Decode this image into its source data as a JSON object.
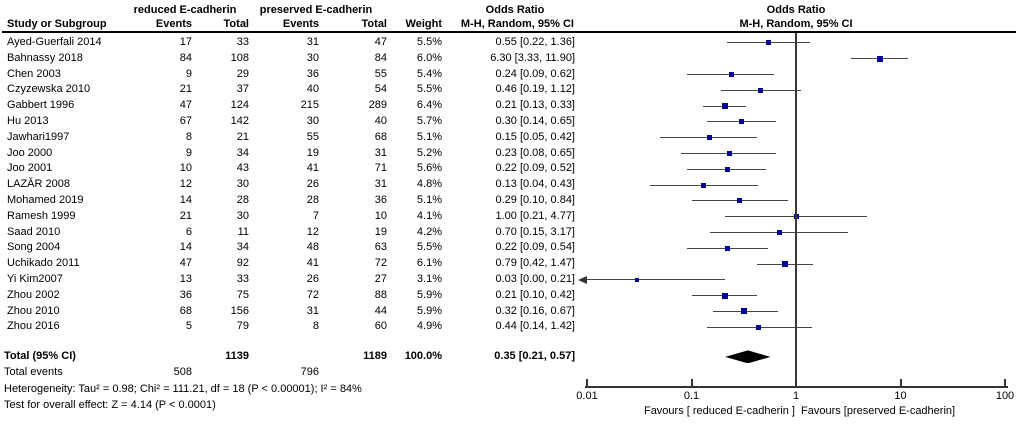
{
  "colors": {
    "background": "#ffffff",
    "text": "#000000",
    "marker_square": "#000099",
    "ci_line": "#474747",
    "axis_line": "#333333"
  },
  "header": {
    "group1": "reduced E-cadherin",
    "group2": "preserved E-cadherin",
    "or_col_title": "Odds Ratio",
    "or_col_subtitle": "M-H, Random, 95% CI",
    "plot_title": "Odds Ratio",
    "plot_subtitle": "M-H, Random, 95% CI",
    "study_col": "Study or Subgroup",
    "events_col": "Events",
    "total_col": "Total",
    "weight_col": "Weight"
  },
  "chart_data": {
    "type": "forest",
    "effect_measure": "Odds Ratio, M-H, Random, 95% CI",
    "x_axis": {
      "scale": "log",
      "min": 0.01,
      "max": 100,
      "ticks": [
        0.01,
        0.1,
        1,
        10,
        100
      ],
      "tick_labels": [
        "0.01",
        "0.1",
        "1",
        "10",
        "100"
      ]
    },
    "favours_left": "Favours [ reduced E-cadherin ]",
    "favours_right": "Favours [preserved E-cadherin]",
    "studies": [
      {
        "name": "Ayed-Guerfali 2014",
        "events1": 17,
        "total1": 33,
        "events2": 31,
        "total2": 47,
        "weight": "5.5%",
        "or_text": "0.55 [0.22, 1.36]",
        "or": 0.55,
        "ci_low": 0.22,
        "ci_high": 1.36
      },
      {
        "name": "Bahnassy 2018",
        "events1": 84,
        "total1": 108,
        "events2": 30,
        "total2": 84,
        "weight": "6.0%",
        "or_text": "6.30 [3.33, 11.90]",
        "or": 6.3,
        "ci_low": 3.33,
        "ci_high": 11.9
      },
      {
        "name": "Chen 2003",
        "events1": 9,
        "total1": 29,
        "events2": 36,
        "total2": 55,
        "weight": "5.4%",
        "or_text": "0.24 [0.09, 0.62]",
        "or": 0.24,
        "ci_low": 0.09,
        "ci_high": 0.62
      },
      {
        "name": "Czyzewska 2010",
        "events1": 21,
        "total1": 37,
        "events2": 40,
        "total2": 54,
        "weight": "5.5%",
        "or_text": "0.46 [0.19, 1.12]",
        "or": 0.46,
        "ci_low": 0.19,
        "ci_high": 1.12
      },
      {
        "name": "Gabbert 1996",
        "events1": 47,
        "total1": 124,
        "events2": 215,
        "total2": 289,
        "weight": "6.4%",
        "or_text": "0.21 [0.13, 0.33]",
        "or": 0.21,
        "ci_low": 0.13,
        "ci_high": 0.33
      },
      {
        "name": "Hu 2013",
        "events1": 67,
        "total1": 142,
        "events2": 30,
        "total2": 40,
        "weight": "5.7%",
        "or_text": "0.30 [0.14, 0.65]",
        "or": 0.3,
        "ci_low": 0.14,
        "ci_high": 0.65
      },
      {
        "name": "Jawhari1997",
        "events1": 8,
        "total1": 21,
        "events2": 55,
        "total2": 68,
        "weight": "5.1%",
        "or_text": "0.15 [0.05, 0.42]",
        "or": 0.15,
        "ci_low": 0.05,
        "ci_high": 0.42
      },
      {
        "name": "Joo 2000",
        "events1": 9,
        "total1": 34,
        "events2": 19,
        "total2": 31,
        "weight": "5.2%",
        "or_text": "0.23 [0.08, 0.65]",
        "or": 0.23,
        "ci_low": 0.08,
        "ci_high": 0.65
      },
      {
        "name": "Joo 2001",
        "events1": 10,
        "total1": 43,
        "events2": 41,
        "total2": 71,
        "weight": "5.6%",
        "or_text": "0.22 [0.09, 0.52]",
        "or": 0.22,
        "ci_low": 0.09,
        "ci_high": 0.52
      },
      {
        "name": "LAZĂR 2008",
        "events1": 12,
        "total1": 30,
        "events2": 26,
        "total2": 31,
        "weight": "4.8%",
        "or_text": "0.13 [0.04, 0.43]",
        "or": 0.13,
        "ci_low": 0.04,
        "ci_high": 0.43
      },
      {
        "name": "Mohamed 2019",
        "events1": 14,
        "total1": 28,
        "events2": 28,
        "total2": 36,
        "weight": "5.1%",
        "or_text": "0.29 [0.10, 0.84]",
        "or": 0.29,
        "ci_low": 0.1,
        "ci_high": 0.84
      },
      {
        "name": "Ramesh 1999",
        "events1": 21,
        "total1": 30,
        "events2": 7,
        "total2": 10,
        "weight": "4.1%",
        "or_text": "1.00 [0.21, 4.77]",
        "or": 1.0,
        "ci_low": 0.21,
        "ci_high": 4.77
      },
      {
        "name": "Saad 2010",
        "events1": 6,
        "total1": 11,
        "events2": 12,
        "total2": 19,
        "weight": "4.2%",
        "or_text": "0.70 [0.15, 3.17]",
        "or": 0.7,
        "ci_low": 0.15,
        "ci_high": 3.17
      },
      {
        "name": "Song 2004",
        "events1": 14,
        "total1": 34,
        "events2": 48,
        "total2": 63,
        "weight": "5.5%",
        "or_text": "0.22 [0.09, 0.54]",
        "or": 0.22,
        "ci_low": 0.09,
        "ci_high": 0.54
      },
      {
        "name": "Uchikado  2011",
        "events1": 47,
        "total1": 92,
        "events2": 41,
        "total2": 72,
        "weight": "6.1%",
        "or_text": "0.79 [0.42, 1.47]",
        "or": 0.79,
        "ci_low": 0.42,
        "ci_high": 1.47
      },
      {
        "name": "Yi Kim2007",
        "events1": 13,
        "total1": 33,
        "events2": 26,
        "total2": 27,
        "weight": "3.1%",
        "or_text": "0.03 [0.00, 0.21]",
        "or": 0.03,
        "ci_low": 0.0,
        "ci_high": 0.21
      },
      {
        "name": "Zhou 2002",
        "events1": 36,
        "total1": 75,
        "events2": 72,
        "total2": 88,
        "weight": "5.9%",
        "or_text": "0.21 [0.10, 0.42]",
        "or": 0.21,
        "ci_low": 0.1,
        "ci_high": 0.42
      },
      {
        "name": "Zhou 2010",
        "events1": 68,
        "total1": 156,
        "events2": 31,
        "total2": 44,
        "weight": "5.9%",
        "or_text": "0.32 [0.16, 0.67]",
        "or": 0.32,
        "ci_low": 0.16,
        "ci_high": 0.67
      },
      {
        "name": "Zhou 2016",
        "events1": 5,
        "total1": 79,
        "events2": 8,
        "total2": 60,
        "weight": "4.9%",
        "or_text": "0.44 [0.14, 1.42]",
        "or": 0.44,
        "ci_low": 0.14,
        "ci_high": 1.42
      }
    ],
    "total": {
      "label": "Total (95% CI)",
      "total1": 1139,
      "total2": 1189,
      "weight": "100.0%",
      "or_text": "0.35 [0.21, 0.57]",
      "or": 0.35,
      "ci_low": 0.21,
      "ci_high": 0.57
    },
    "total_events": {
      "label": "Total events",
      "events1": 508,
      "events2": 796
    },
    "heterogeneity": "Heterogeneity: Tau² = 0.98; Chi² = 111.21, df = 18 (P < 0.00001); I² = 84%",
    "overall_effect": "Test for overall effect: Z = 4.14 (P < 0.0001)"
  }
}
